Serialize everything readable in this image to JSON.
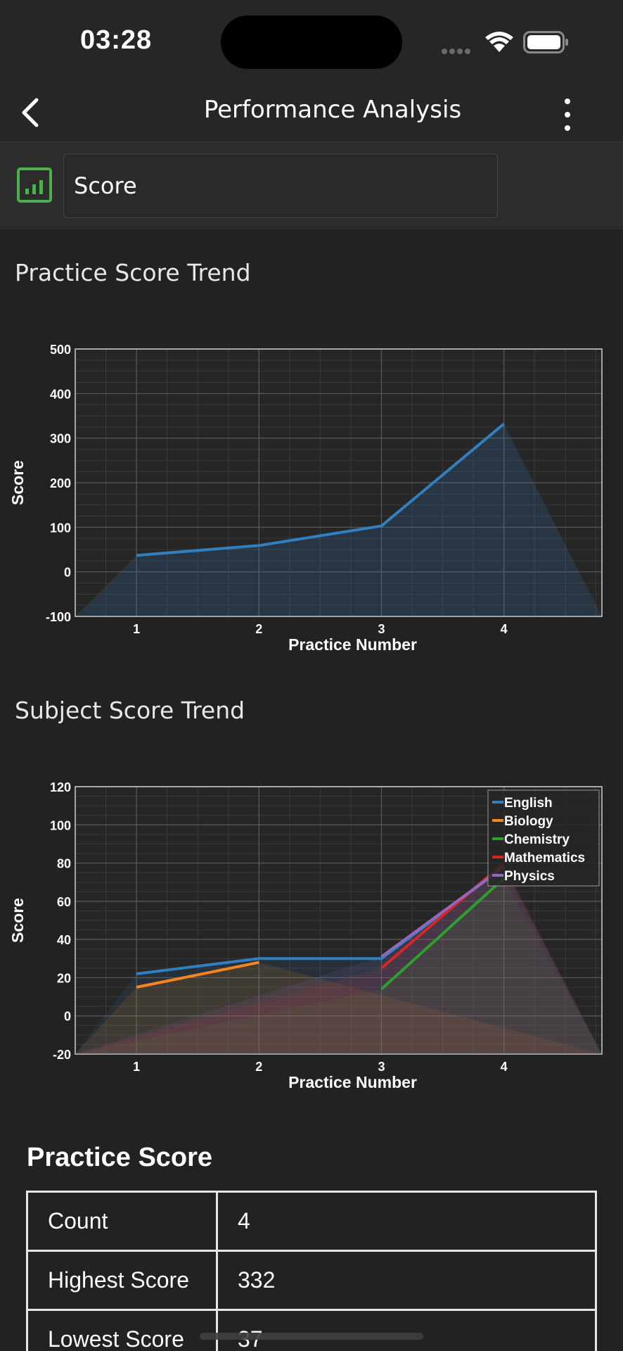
{
  "status": {
    "time": "03:28"
  },
  "nav": {
    "title": "Performance Analysis",
    "back_icon": "chevron-left-icon",
    "more_icon": "more-vertical-icon"
  },
  "filter": {
    "selected": "Score",
    "icon": "bar-chart-icon",
    "accent": "#4caf50"
  },
  "sections": {
    "practice_trend": "Practice Score Trend",
    "subject_trend": "Subject Score Trend"
  },
  "chart_data": [
    {
      "type": "line",
      "xlabel": "Practice Number",
      "ylabel": "Score",
      "x": [
        1,
        2,
        3,
        4
      ],
      "ylim": [
        -100,
        500
      ],
      "xticks": [
        "1",
        "2",
        "3",
        "4"
      ],
      "yticks": [
        "500",
        "400",
        "300",
        "200",
        "100",
        "0",
        "-100"
      ],
      "grid": true,
      "series": [
        {
          "values": [
            37,
            59,
            103,
            332
          ],
          "color": "#2f7fc1"
        }
      ]
    },
    {
      "type": "line",
      "xlabel": "Practice Number",
      "ylabel": "Score",
      "x": [
        1,
        2,
        3,
        4
      ],
      "ylim": [
        -20,
        120
      ],
      "xticks": [
        "1",
        "2",
        "3",
        "4"
      ],
      "yticks": [
        "120",
        "100",
        "80",
        "60",
        "40",
        "20",
        "0",
        "-20"
      ],
      "grid": true,
      "legend": "top-right",
      "series": [
        {
          "name": "English",
          "x": [
            1,
            2,
            3,
            4
          ],
          "values": [
            22,
            30,
            30,
            78
          ],
          "color": "#2f7fc1"
        },
        {
          "name": "Biology",
          "x": [
            1,
            2
          ],
          "values": [
            15,
            28
          ],
          "color": "#f5861f"
        },
        {
          "name": "Chemistry",
          "x": [
            3,
            4
          ],
          "values": [
            14,
            72
          ],
          "color": "#2ca02c"
        },
        {
          "name": "Mathematics",
          "x": [
            3,
            4
          ],
          "values": [
            25,
            80
          ],
          "color": "#d62728"
        },
        {
          "name": "Physics",
          "x": [
            3,
            4
          ],
          "values": [
            31,
            78
          ],
          "color": "#9467bd"
        }
      ]
    }
  ],
  "stats": {
    "title": "Practice Score",
    "rows": [
      {
        "label": "Count",
        "value": "4"
      },
      {
        "label": "Highest Score",
        "value": "332"
      },
      {
        "label": "Lowest Score",
        "value": "37"
      }
    ]
  }
}
